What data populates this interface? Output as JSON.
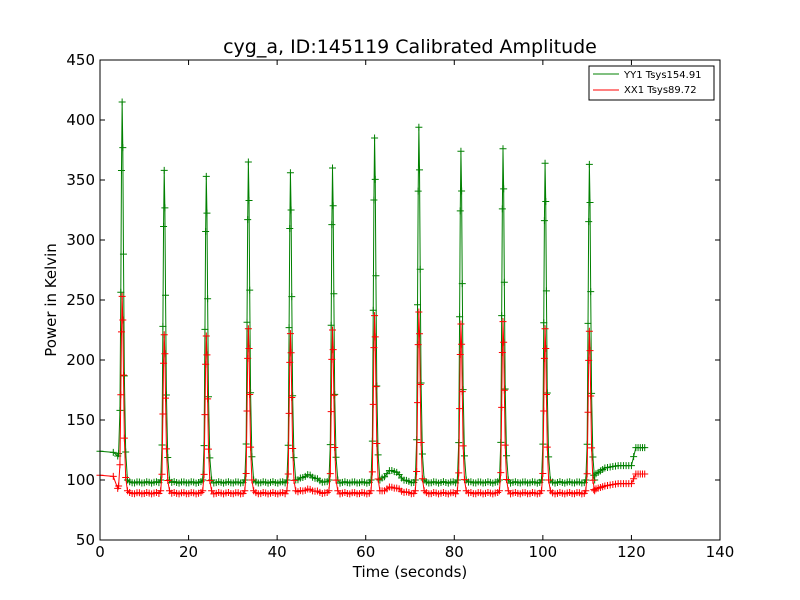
{
  "chart_data": {
    "type": "line",
    "title": "cyg_a, ID:145119 Calibrated Amplitude",
    "xlabel": "Time (seconds)",
    "ylabel": "Power in Kelvin",
    "xlim": [
      0,
      140
    ],
    "ylim": [
      50,
      450
    ],
    "xticks": [
      "0",
      "20",
      "40",
      "60",
      "80",
      "100",
      "120",
      "140"
    ],
    "yticks": [
      "50",
      "100",
      "150",
      "200",
      "250",
      "300",
      "350",
      "400",
      "450"
    ],
    "legend_position": "top-right",
    "grid": false,
    "peak_times": [
      5,
      14.5,
      24,
      33.5,
      43,
      52.5,
      62,
      72,
      81.5,
      91,
      100.5,
      110.5
    ],
    "series": [
      {
        "name": "YY1 Tsys154.91",
        "color": "#008000",
        "marker": "+",
        "baseline": 98,
        "start_level": [
          [
            0,
            124
          ],
          [
            3,
            123
          ],
          [
            4,
            120
          ]
        ],
        "end_level": [
          [
            111.5,
            104
          ],
          [
            114,
            110
          ],
          [
            117,
            112
          ],
          [
            120,
            112
          ],
          [
            121,
            127
          ],
          [
            123,
            127
          ]
        ],
        "bumps": [
          [
            47,
            6
          ],
          [
            66,
            10
          ]
        ],
        "peaks": [
          415,
          358,
          353,
          365,
          356,
          360,
          385,
          394,
          374,
          376,
          364,
          363
        ]
      },
      {
        "name": "XX1 Tsys89.72",
        "color": "#ff0000",
        "marker": "+",
        "baseline": 89,
        "start_level": [
          [
            0,
            104
          ],
          [
            3,
            103
          ],
          [
            4,
            93
          ]
        ],
        "end_level": [
          [
            111.5,
            92
          ],
          [
            114,
            95
          ],
          [
            117,
            97
          ],
          [
            120,
            97
          ],
          [
            121,
            105
          ],
          [
            123,
            105
          ]
        ],
        "bumps": [
          [
            47,
            3
          ],
          [
            66,
            5
          ]
        ],
        "peaks": [
          253,
          221,
          220,
          226,
          222,
          225,
          237,
          240,
          230,
          232,
          226,
          224
        ]
      }
    ]
  }
}
